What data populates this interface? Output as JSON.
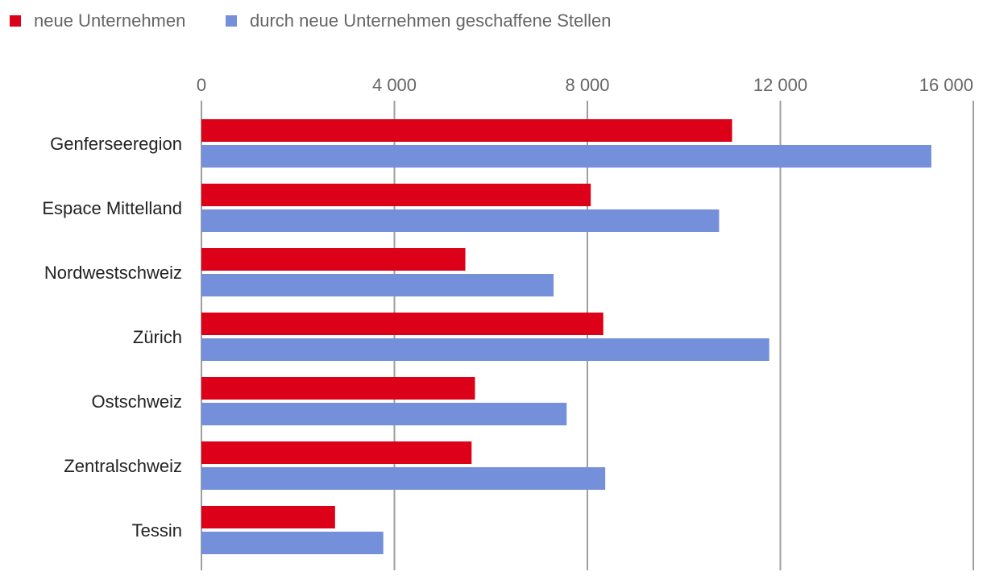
{
  "chart_data": {
    "type": "bar",
    "orientation": "horizontal",
    "categories": [
      "Genferseeregion",
      "Espace Mittelland",
      "Nordwestschweiz",
      "Zürich",
      "Ostschweiz",
      "Zentralschweiz",
      "Tessin"
    ],
    "series": [
      {
        "name": "neue Unternehmen",
        "color": "#dc0018",
        "values": [
          11000,
          8070,
          5470,
          8330,
          5670,
          5600,
          2770
        ]
      },
      {
        "name": "durch neue Unternehmen geschaffene Stellen",
        "color": "#7490db",
        "values": [
          15130,
          10730,
          7300,
          11770,
          7570,
          8370,
          3770
        ]
      }
    ],
    "xticks": [
      0,
      4000,
      8000,
      12000,
      16000
    ],
    "xtick_labels": [
      "0",
      "4 000",
      "8 000",
      "12 000",
      "16 000"
    ],
    "xlim": [
      0,
      16000
    ],
    "grid": true,
    "legend_position": "top-left",
    "title": "",
    "xlabel": "",
    "ylabel": ""
  }
}
